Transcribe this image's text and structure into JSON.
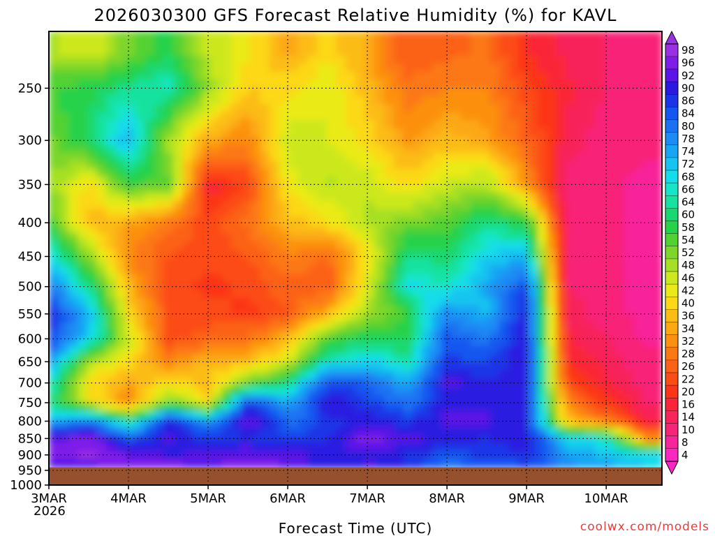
{
  "chart_data": {
    "type": "heatmap",
    "title": "2026030300 GFS Forecast Relative Humidity (%) for KAVL",
    "xlabel": "Forecast Time (UTC)",
    "ylabel": "",
    "credit": "coolwx.com/models",
    "x_start_year": "2026",
    "y_scale": "log",
    "y_inverted": true,
    "ylim": [
      1000,
      205
    ],
    "xlim": [
      0,
      7.7
    ],
    "x_ticks": [
      {
        "label": "3MAR",
        "value": 0
      },
      {
        "label": "4MAR",
        "value": 1
      },
      {
        "label": "5MAR",
        "value": 2
      },
      {
        "label": "6MAR",
        "value": 3
      },
      {
        "label": "7MAR",
        "value": 4
      },
      {
        "label": "8MAR",
        "value": 5
      },
      {
        "label": "9MAR",
        "value": 6
      },
      {
        "label": "10MAR",
        "value": 7
      }
    ],
    "y_ticks": [
      {
        "label": "250",
        "value": 250
      },
      {
        "label": "300",
        "value": 300
      },
      {
        "label": "350",
        "value": 350
      },
      {
        "label": "400",
        "value": 400
      },
      {
        "label": "450",
        "value": 450
      },
      {
        "label": "500",
        "value": 500
      },
      {
        "label": "550",
        "value": 550
      },
      {
        "label": "600",
        "value": 600
      },
      {
        "label": "650",
        "value": 650
      },
      {
        "label": "700",
        "value": 700
      },
      {
        "label": "750",
        "value": 750
      },
      {
        "label": "800",
        "value": 800
      },
      {
        "label": "850",
        "value": 850
      },
      {
        "label": "900",
        "value": 900
      },
      {
        "label": "950",
        "value": 950
      },
      {
        "label": "1000",
        "value": 1000
      }
    ],
    "grid": true,
    "surface_pressure": 940,
    "colorbar": {
      "levels": [
        "98",
        "96",
        "92",
        "90",
        "86",
        "84",
        "80",
        "78",
        "74",
        "72",
        "68",
        "66",
        "64",
        "60",
        "58",
        "54",
        "52",
        "48",
        "46",
        "42",
        "40",
        "36",
        "34",
        "32",
        "28",
        "26",
        "22",
        "20",
        "16",
        "14",
        "10",
        "8",
        "4"
      ],
      "colors": [
        "#9b2fe3",
        "#7e1ce8",
        "#5a16e6",
        "#2a1ae0",
        "#1a34e6",
        "#1457f0",
        "#1a72f2",
        "#1c8cf4",
        "#18a6f4",
        "#16c4f0",
        "#14dcea",
        "#16e6c8",
        "#18e2a0",
        "#1ad870",
        "#26d24a",
        "#52d232",
        "#7ed62a",
        "#a6e024",
        "#cce81e",
        "#eaea18",
        "#fcd816",
        "#fcbc14",
        "#fca812",
        "#fc9010",
        "#fc7812",
        "#fc6216",
        "#fc4c16",
        "#fc3418",
        "#fa2638",
        "#f8245a",
        "#f82478",
        "#f8249a",
        "#f828c0"
      ]
    },
    "grid_times": [
      0,
      0.5,
      1,
      1.5,
      2,
      2.5,
      3,
      3.5,
      4,
      4.5,
      5,
      5.5,
      6,
      6.5,
      7,
      7.5
    ],
    "grid_pressures": [
      940,
      900,
      850,
      800,
      750,
      700,
      650,
      600,
      550,
      500,
      450,
      400,
      350,
      300,
      250,
      220
    ],
    "rh_values": [
      [
        92,
        92,
        96,
        96,
        94,
        96,
        94,
        88,
        92,
        88,
        80,
        82,
        84,
        78,
        74,
        70
      ],
      [
        96,
        98,
        94,
        90,
        92,
        94,
        92,
        90,
        90,
        88,
        84,
        86,
        88,
        76,
        72,
        68
      ],
      [
        92,
        96,
        82,
        92,
        86,
        88,
        86,
        88,
        96,
        92,
        90,
        88,
        90,
        70,
        66,
        30
      ],
      [
        74,
        80,
        62,
        88,
        76,
        94,
        80,
        86,
        90,
        86,
        92,
        92,
        88,
        36,
        28,
        16
      ],
      [
        62,
        42,
        30,
        52,
        40,
        86,
        74,
        92,
        86,
        80,
        90,
        90,
        90,
        30,
        20,
        12
      ],
      [
        68,
        40,
        34,
        40,
        36,
        52,
        62,
        84,
        82,
        74,
        92,
        88,
        90,
        22,
        16,
        10
      ],
      [
        78,
        48,
        40,
        30,
        36,
        36,
        44,
        66,
        70,
        64,
        86,
        84,
        92,
        18,
        14,
        10
      ],
      [
        86,
        70,
        46,
        22,
        26,
        28,
        36,
        54,
        60,
        58,
        84,
        80,
        90,
        16,
        12,
        8
      ],
      [
        88,
        74,
        40,
        24,
        22,
        20,
        24,
        36,
        48,
        56,
        78,
        72,
        90,
        14,
        10,
        8
      ],
      [
        80,
        62,
        36,
        22,
        20,
        22,
        26,
        24,
        44,
        68,
        66,
        74,
        86,
        12,
        10,
        8
      ],
      [
        70,
        50,
        30,
        24,
        22,
        24,
        30,
        26,
        40,
        62,
        60,
        70,
        72,
        12,
        10,
        8
      ],
      [
        56,
        36,
        34,
        28,
        22,
        28,
        36,
        40,
        48,
        52,
        54,
        62,
        58,
        12,
        10,
        8
      ],
      [
        50,
        40,
        56,
        54,
        16,
        22,
        42,
        48,
        46,
        40,
        46,
        48,
        32,
        10,
        10,
        8
      ],
      [
        52,
        60,
        74,
        48,
        34,
        30,
        46,
        44,
        40,
        32,
        36,
        34,
        26,
        14,
        10,
        10
      ],
      [
        56,
        58,
        62,
        66,
        50,
        38,
        40,
        44,
        36,
        28,
        30,
        30,
        22,
        16,
        12,
        10
      ],
      [
        48,
        44,
        52,
        58,
        46,
        42,
        34,
        40,
        34,
        24,
        26,
        28,
        18,
        14,
        12,
        10
      ]
    ]
  }
}
